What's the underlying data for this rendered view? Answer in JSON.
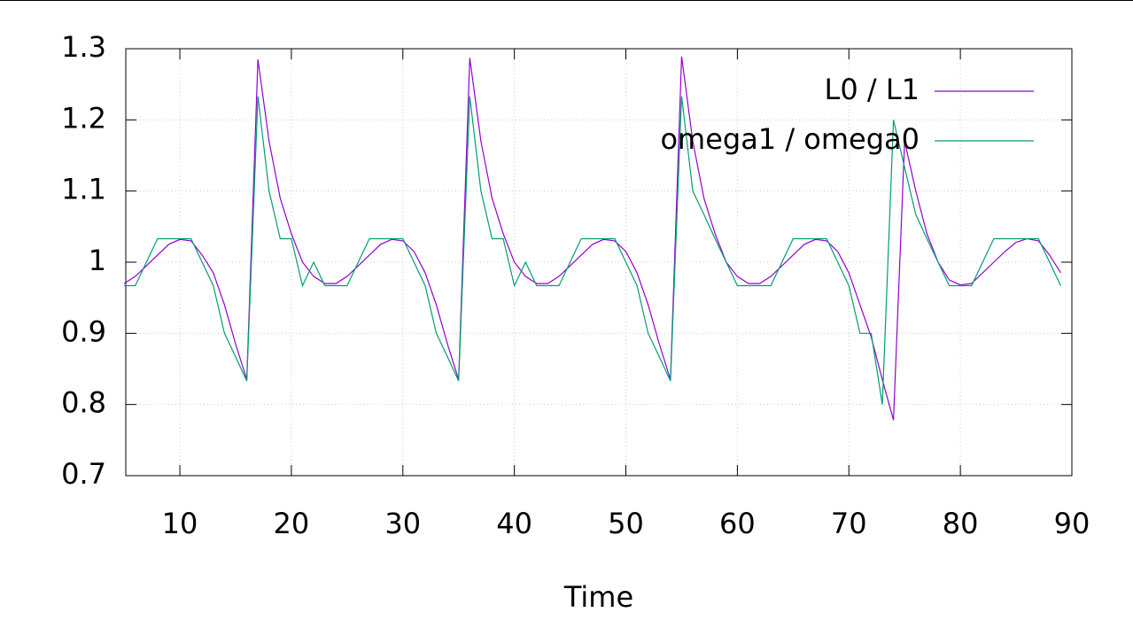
{
  "chart_data": {
    "type": "line",
    "xlabel": "Time",
    "x": [
      5,
      6,
      7,
      8,
      9,
      10,
      11,
      12,
      13,
      14,
      15,
      16,
      17,
      18,
      19,
      20,
      21,
      22,
      23,
      24,
      25,
      26,
      27,
      28,
      29,
      30,
      31,
      32,
      33,
      34,
      35,
      36,
      37,
      38,
      39,
      40,
      41,
      42,
      43,
      44,
      45,
      46,
      47,
      48,
      49,
      50,
      51,
      52,
      53,
      54,
      55,
      56,
      57,
      58,
      59,
      60,
      61,
      62,
      63,
      64,
      65,
      66,
      67,
      68,
      69,
      70,
      71,
      72,
      73,
      74,
      75,
      76,
      77,
      78,
      79,
      80,
      81,
      82,
      83,
      84,
      85,
      86,
      87,
      88,
      89
    ],
    "series": [
      {
        "name": "L0 / L1",
        "color": "#9400d3",
        "values": [
          0.97,
          0.98,
          0.995,
          1.01,
          1.025,
          1.032,
          1.03,
          1.01,
          0.985,
          0.94,
          0.885,
          0.835,
          1.285,
          1.17,
          1.09,
          1.04,
          1.0,
          0.98,
          0.97,
          0.97,
          0.98,
          0.995,
          1.01,
          1.025,
          1.032,
          1.03,
          1.015,
          0.985,
          0.94,
          0.885,
          0.835,
          1.287,
          1.17,
          1.09,
          1.04,
          1.0,
          0.98,
          0.97,
          0.97,
          0.98,
          0.995,
          1.01,
          1.025,
          1.032,
          1.03,
          1.015,
          0.985,
          0.94,
          0.885,
          0.835,
          1.289,
          1.17,
          1.09,
          1.04,
          1.0,
          0.98,
          0.97,
          0.97,
          0.98,
          0.995,
          1.01,
          1.025,
          1.032,
          1.03,
          1.015,
          0.985,
          0.94,
          0.895,
          0.835,
          0.778,
          1.17,
          1.1,
          1.04,
          1.0,
          0.975,
          0.968,
          0.97,
          0.985,
          1.0,
          1.015,
          1.028,
          1.033,
          1.03,
          1.01,
          0.985
        ]
      },
      {
        "name": "omega1 / omega0",
        "color": "#009e73",
        "values": [
          0.967,
          0.967,
          1.0,
          1.033,
          1.033,
          1.033,
          1.033,
          1.0,
          0.967,
          0.9,
          0.867,
          0.833,
          1.233,
          1.1,
          1.033,
          1.033,
          0.967,
          1.0,
          0.967,
          0.967,
          0.967,
          1.0,
          1.033,
          1.033,
          1.033,
          1.033,
          1.0,
          0.967,
          0.9,
          0.867,
          0.833,
          1.233,
          1.1,
          1.033,
          1.033,
          0.967,
          1.0,
          0.967,
          0.967,
          0.967,
          1.0,
          1.033,
          1.033,
          1.033,
          1.033,
          1.0,
          0.967,
          0.9,
          0.867,
          0.833,
          1.233,
          1.1,
          1.067,
          1.033,
          1.0,
          0.967,
          0.967,
          0.967,
          0.967,
          1.0,
          1.033,
          1.033,
          1.033,
          1.033,
          1.0,
          0.967,
          0.9,
          0.9,
          0.8,
          1.2,
          1.133,
          1.067,
          1.033,
          1.0,
          0.967,
          0.967,
          0.967,
          1.0,
          1.033,
          1.033,
          1.033,
          1.033,
          1.033,
          1.0,
          0.967
        ]
      }
    ],
    "xlim": [
      5.15,
      90
    ],
    "xticks": [
      10,
      20,
      30,
      40,
      50,
      60,
      70,
      80,
      90
    ],
    "ylim": [
      0.7,
      1.3
    ],
    "yticks": [
      0.7,
      0.8,
      0.9,
      1,
      1.1,
      1.2,
      1.3
    ],
    "grid": true,
    "legend": "top-right"
  }
}
